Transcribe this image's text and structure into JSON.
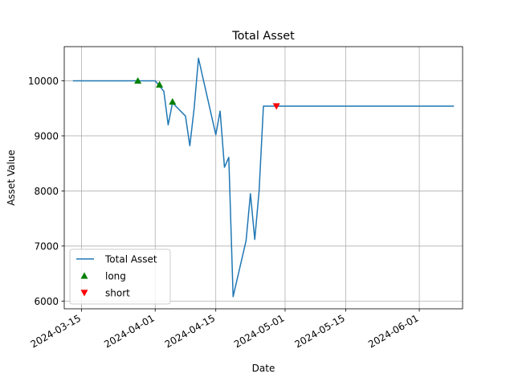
{
  "chart_data": {
    "type": "line",
    "title": "Total Asset",
    "xlabel": "Date",
    "ylabel": "Asset Value",
    "grid": true,
    "legend_placement": "lower-left",
    "xlim": [
      "2024-03-11",
      "2024-06-11"
    ],
    "ylim": [
      5860,
      10620
    ],
    "x_ticks": [
      "2024-03-15",
      "2024-04-01",
      "2024-04-15",
      "2024-05-01",
      "2024-05-15",
      "2024-06-01"
    ],
    "y_ticks": [
      6000,
      7000,
      8000,
      9000,
      10000
    ],
    "series": [
      {
        "name": "Total Asset",
        "kind": "line",
        "color": "#1f77b4",
        "x": [
          "2024-03-13",
          "2024-03-28",
          "2024-04-01",
          "2024-04-03",
          "2024-04-04",
          "2024-04-05",
          "2024-04-08",
          "2024-04-09",
          "2024-04-10",
          "2024-04-11",
          "2024-04-15",
          "2024-04-16",
          "2024-04-17",
          "2024-04-18",
          "2024-04-19",
          "2024-04-22",
          "2024-04-23",
          "2024-04-24",
          "2024-04-25",
          "2024-04-26",
          "2024-04-29",
          "2024-04-30",
          "2024-05-31",
          "2024-06-09"
        ],
        "y": [
          10000,
          10000,
          10000,
          9810,
          9200,
          9600,
          9360,
          8820,
          9500,
          10410,
          9020,
          9450,
          8430,
          8610,
          6080,
          7100,
          7950,
          7120,
          8000,
          9540,
          9540,
          9540,
          9540,
          9540
        ]
      },
      {
        "name": "long",
        "kind": "marker",
        "marker": "triangle-up",
        "color": "#008000",
        "x": [
          "2024-03-28",
          "2024-04-02",
          "2024-04-05"
        ],
        "y": [
          10000,
          9930,
          9620
        ]
      },
      {
        "name": "short",
        "kind": "marker",
        "marker": "triangle-down",
        "color": "#ff0000",
        "x": [
          "2024-04-29"
        ],
        "y": [
          9540
        ]
      }
    ]
  }
}
